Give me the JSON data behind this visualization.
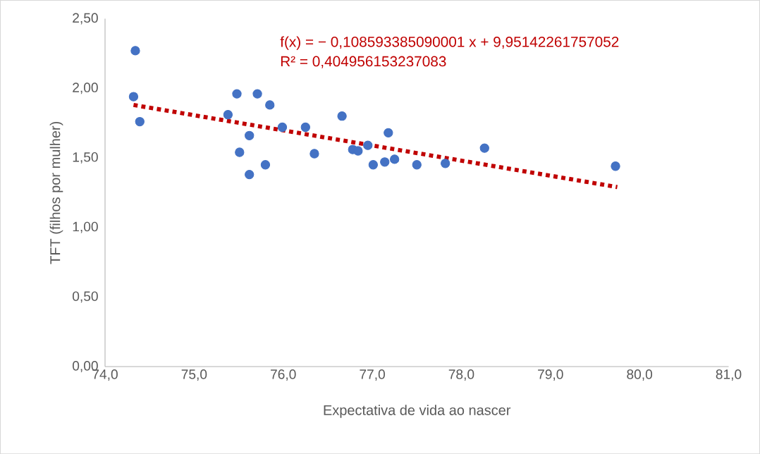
{
  "chart_data": {
    "type": "scatter",
    "xlabel": "Expectativa de vida ao nascer",
    "ylabel": "TFT (filhos por mulher)",
    "annotations": [
      "f(x) = − 0,108593385090001 x + 9,95142261757052",
      "R² = 0,404956153237083"
    ],
    "xlim": [
      74,
      81
    ],
    "ylim": [
      0,
      2.5
    ],
    "xticks": [
      {
        "value": 74,
        "label": "74,0"
      },
      {
        "value": 75,
        "label": "75,0"
      },
      {
        "value": 76,
        "label": "76,0"
      },
      {
        "value": 77,
        "label": "77,0"
      },
      {
        "value": 78,
        "label": "78,0"
      },
      {
        "value": 79,
        "label": "79,0"
      },
      {
        "value": 80,
        "label": "80,0"
      },
      {
        "value": 81,
        "label": "81,0"
      }
    ],
    "yticks": [
      {
        "value": 0,
        "label": "0,00"
      },
      {
        "value": 0.5,
        "label": "0,50"
      },
      {
        "value": 1,
        "label": "1,00"
      },
      {
        "value": 1.5,
        "label": "1,50"
      },
      {
        "value": 2,
        "label": "2,00"
      },
      {
        "value": 2.5,
        "label": "2,50"
      }
    ],
    "grid": false,
    "legend": false,
    "series": [
      {
        "type": "scatter",
        "marker": "circle",
        "color": "#4472c4",
        "x": [
          74.34,
          74.32,
          74.39,
          75.48,
          75.71,
          75.85,
          75.38,
          75.62,
          75.51,
          75.62,
          75.8,
          75.99,
          76.25,
          76.35,
          76.66,
          77.18,
          76.78,
          76.84,
          76.95,
          77.01,
          77.14,
          77.25,
          77.5,
          77.82,
          78.26,
          79.73
        ],
        "values": [
          2.27,
          1.94,
          1.76,
          1.96,
          1.96,
          1.88,
          1.81,
          1.66,
          1.54,
          1.38,
          1.45,
          1.72,
          1.72,
          1.53,
          1.8,
          1.68,
          1.56,
          1.55,
          1.59,
          1.45,
          1.47,
          1.49,
          1.45,
          1.46,
          1.57,
          1.44
        ]
      },
      {
        "type": "line",
        "color": "#c00000",
        "line_style": "dotted",
        "marker": "none",
        "x": [
          74.32,
          79.75
        ],
        "values": [
          1.88,
          1.29
        ]
      }
    ]
  }
}
